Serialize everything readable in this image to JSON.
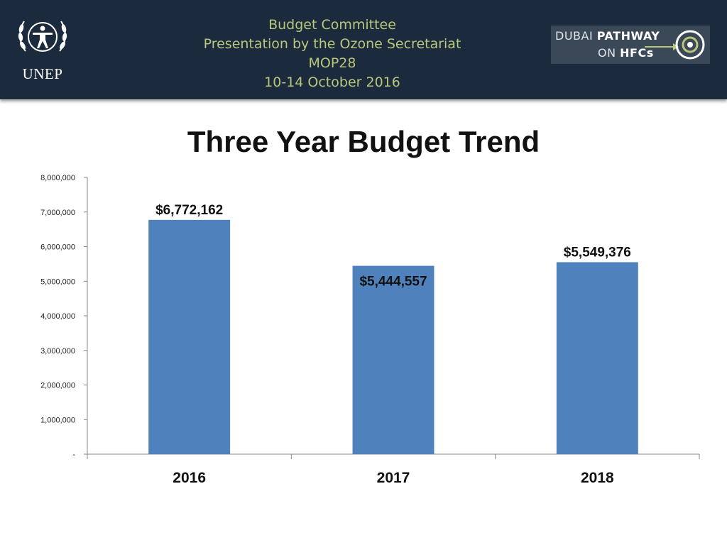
{
  "header": {
    "lines": [
      "Budget Committee",
      "Presentation by the Ozone Secretariat",
      "MOP28",
      "10-14 October 2016"
    ],
    "org_logo_text": "UNEP",
    "partner_logo": {
      "line1_a": "DUBAI ",
      "line1_b": "PATHWAY",
      "line2_a": "ON ",
      "line2_b": "HFCs"
    }
  },
  "colors": {
    "header_bg": "#1b2a3d",
    "header_text": "#b9c77a",
    "bar": "#4f81bd"
  },
  "chart_data": {
    "type": "bar",
    "title": "Three Year Budget Trend",
    "categories": [
      "2016",
      "2017",
      "2018"
    ],
    "values": [
      6772162,
      5444557,
      5549376
    ],
    "data_labels": [
      "$6,772,162",
      "$5,444,557",
      "$5,549,376"
    ],
    "ylim": [
      0,
      8000000
    ],
    "ytick_values": [
      0,
      1000000,
      2000000,
      3000000,
      4000000,
      5000000,
      6000000,
      7000000,
      8000000
    ],
    "ytick_labels": [
      "-",
      "1,000,000",
      "2,000,000",
      "3,000,000",
      "4,000,000",
      "5,000,000",
      "6,000,000",
      "7,000,000",
      "8,000,000"
    ],
    "xlabel": "",
    "ylabel": "",
    "grid": false,
    "legend": "none"
  }
}
